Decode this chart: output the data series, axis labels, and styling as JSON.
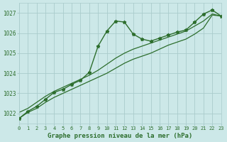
{
  "background_color": "#cce8e8",
  "grid_color": "#aacccc",
  "line_color": "#2d6e2d",
  "title": "Graphe pression niveau de la mer (hPa)",
  "xlim": [
    0,
    23
  ],
  "ylim": [
    1021.5,
    1027.5
  ],
  "yticks": [
    1022,
    1023,
    1024,
    1025,
    1026,
    1027
  ],
  "xticks": [
    0,
    1,
    2,
    3,
    4,
    5,
    6,
    7,
    8,
    9,
    10,
    11,
    12,
    13,
    14,
    15,
    16,
    17,
    18,
    19,
    20,
    21,
    22,
    23
  ],
  "series_marker_x": [
    0,
    1,
    2,
    3,
    4,
    5,
    6,
    7,
    8,
    9,
    10,
    11,
    12,
    13,
    14,
    15,
    16,
    17,
    18,
    19,
    20,
    21,
    22,
    23
  ],
  "series_marker_y": [
    1021.75,
    1022.1,
    1022.35,
    1022.7,
    1023.05,
    1023.2,
    1023.45,
    1023.65,
    1024.05,
    1025.35,
    1026.1,
    1026.6,
    1026.55,
    1025.95,
    1025.7,
    1025.6,
    1025.75,
    1025.9,
    1026.05,
    1026.15,
    1026.55,
    1026.95,
    1027.15,
    1026.85
  ],
  "series_high_x": [
    0,
    1,
    2,
    3,
    4,
    5,
    6,
    7,
    8,
    9,
    10,
    11,
    12,
    13,
    14,
    15,
    16,
    17,
    18,
    19,
    20,
    21,
    22,
    23
  ],
  "series_high_y": [
    1022.05,
    1022.25,
    1022.55,
    1022.85,
    1023.1,
    1023.3,
    1023.5,
    1023.7,
    1023.9,
    1024.15,
    1024.45,
    1024.75,
    1025.0,
    1025.2,
    1025.35,
    1025.5,
    1025.65,
    1025.8,
    1025.95,
    1026.1,
    1026.35,
    1026.6,
    1026.95,
    1026.85
  ],
  "series_low_x": [
    0,
    1,
    2,
    3,
    4,
    5,
    6,
    7,
    8,
    9,
    10,
    11,
    12,
    13,
    14,
    15,
    16,
    17,
    18,
    19,
    20,
    21,
    22,
    23
  ],
  "series_low_y": [
    1021.75,
    1022.05,
    1022.25,
    1022.55,
    1022.8,
    1023.0,
    1023.2,
    1023.4,
    1023.6,
    1023.8,
    1024.0,
    1024.25,
    1024.5,
    1024.7,
    1024.85,
    1025.0,
    1025.2,
    1025.4,
    1025.55,
    1025.7,
    1025.95,
    1026.25,
    1026.9,
    1026.85
  ]
}
